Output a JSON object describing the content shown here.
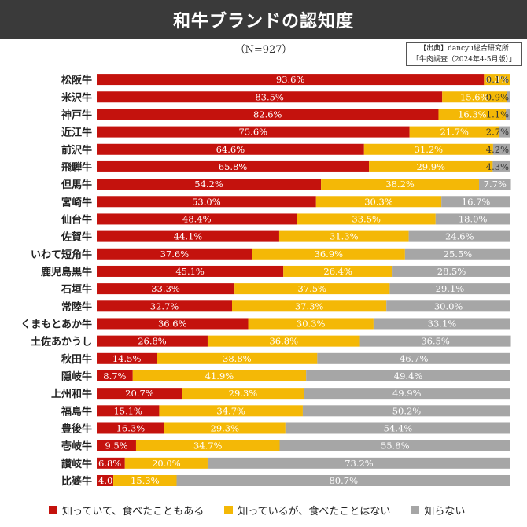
{
  "header": {
    "title": "和牛ブランドの認知度",
    "subtitle": "（N=927）",
    "source_line1": "【出典】dancyu総合研究所",
    "source_line2": "「牛肉調査（2024年4-5月版）」"
  },
  "colors": {
    "eaten": "#c4120d",
    "known": "#f4b806",
    "unknown": "#a6a6a6",
    "title_bg": "#3a3a3a"
  },
  "chart_data": {
    "type": "bar",
    "orientation": "horizontal-stacked-100",
    "title": "和牛ブランドの認知度",
    "categories": [
      "松阪牛",
      "米沢牛",
      "神戸牛",
      "近江牛",
      "前沢牛",
      "飛騨牛",
      "但馬牛",
      "宮崎牛",
      "仙台牛",
      "佐賀牛",
      "いわて短角牛",
      "鹿児島黒牛",
      "石垣牛",
      "常陸牛",
      "くまもとあか牛",
      "土佐あかうし",
      "秋田牛",
      "隠岐牛",
      "上州和牛",
      "福島牛",
      "豊後牛",
      "壱岐牛",
      "讃岐牛",
      "比婆牛"
    ],
    "series": [
      {
        "name": "知っていて、食べたこともある",
        "values": [
          93.6,
          83.5,
          82.6,
          75.6,
          64.6,
          65.8,
          54.2,
          53.0,
          48.4,
          44.1,
          37.6,
          45.1,
          33.3,
          32.7,
          36.6,
          26.8,
          14.5,
          8.7,
          20.7,
          15.1,
          16.3,
          9.5,
          6.8,
          4.0
        ]
      },
      {
        "name": "知っているが、食べたことはない",
        "values": [
          6.3,
          15.6,
          16.3,
          21.7,
          31.2,
          29.9,
          38.2,
          30.3,
          33.5,
          31.3,
          36.9,
          26.4,
          37.5,
          37.3,
          30.3,
          36.8,
          38.8,
          41.9,
          29.3,
          34.7,
          29.3,
          34.7,
          20.0,
          15.3
        ]
      },
      {
        "name": "知らない",
        "values": [
          0.1,
          0.9,
          1.1,
          2.7,
          4.2,
          4.3,
          7.7,
          16.7,
          18.0,
          24.6,
          25.5,
          28.5,
          29.1,
          30.0,
          33.1,
          36.5,
          46.7,
          49.4,
          49.9,
          50.2,
          54.4,
          55.8,
          73.2,
          80.7
        ]
      }
    ],
    "xlim": [
      0,
      100
    ],
    "legend_position": "bottom"
  }
}
